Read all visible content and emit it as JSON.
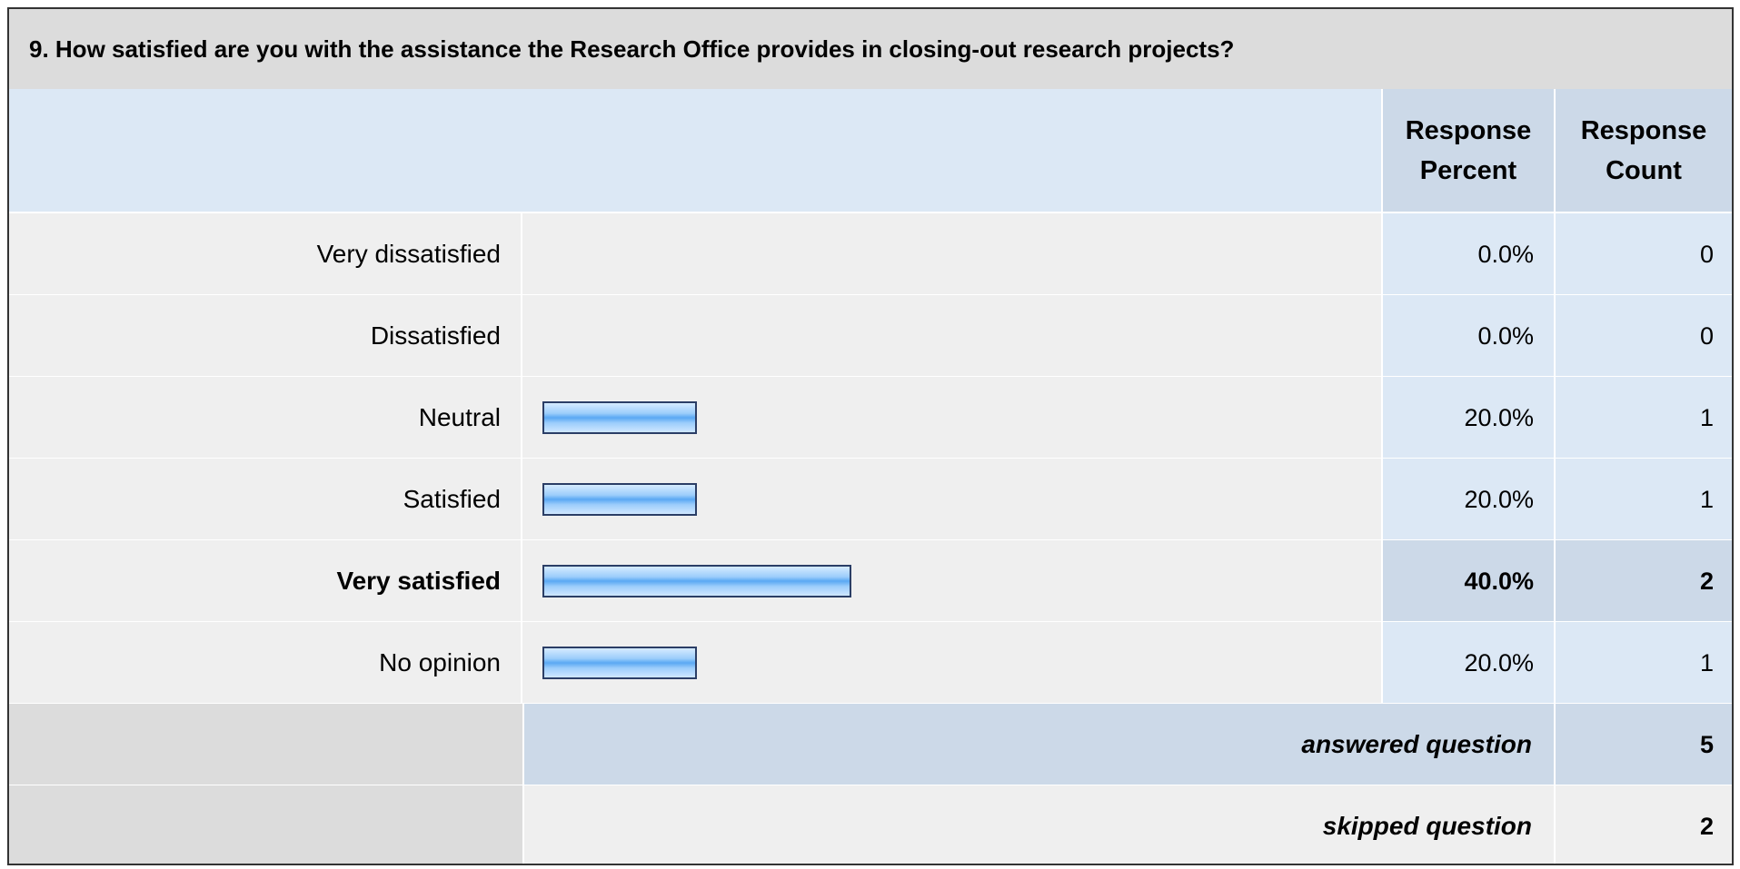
{
  "question": "9. How satisfied are you with the assistance the Research Office provides in closing-out research projects?",
  "headers": {
    "percent_line1": "Response",
    "percent_line2": "Percent",
    "count_line1": "Response",
    "count_line2": "Count"
  },
  "colors": {
    "bar_fill": "#5aa8f3",
    "bar_border": "#2b3e66",
    "header_bg": "#dce8f5",
    "title_bg": "#dcdcdc"
  },
  "chart_data": {
    "type": "bar",
    "orientation": "horizontal",
    "title": "9. How satisfied are you with the assistance the Research Office provides in closing-out research projects?",
    "categories": [
      "Very dissatisfied",
      "Dissatisfied",
      "Neutral",
      "Satisfied",
      "Very satisfied",
      "No opinion"
    ],
    "values": [
      0.0,
      0.0,
      20.0,
      20.0,
      40.0,
      20.0
    ],
    "rows": [
      {
        "label": "Very dissatisfied",
        "percent": 0.0,
        "percent_text": "0.0%",
        "count": "0",
        "highlight": false
      },
      {
        "label": "Dissatisfied",
        "percent": 0.0,
        "percent_text": "0.0%",
        "count": "0",
        "highlight": false
      },
      {
        "label": "Neutral",
        "percent": 20.0,
        "percent_text": "20.0%",
        "count": "1",
        "highlight": false
      },
      {
        "label": "Satisfied",
        "percent": 20.0,
        "percent_text": "20.0%",
        "count": "1",
        "highlight": false
      },
      {
        "label": "Very satisfied",
        "percent": 40.0,
        "percent_text": "40.0%",
        "count": "2",
        "highlight": true
      },
      {
        "label": "No opinion",
        "percent": 20.0,
        "percent_text": "20.0%",
        "count": "1",
        "highlight": false
      }
    ],
    "xlim": [
      0,
      100
    ]
  },
  "summary": {
    "answered_label": "answered question",
    "answered_value": "5",
    "skipped_label": "skipped question",
    "skipped_value": "2"
  }
}
